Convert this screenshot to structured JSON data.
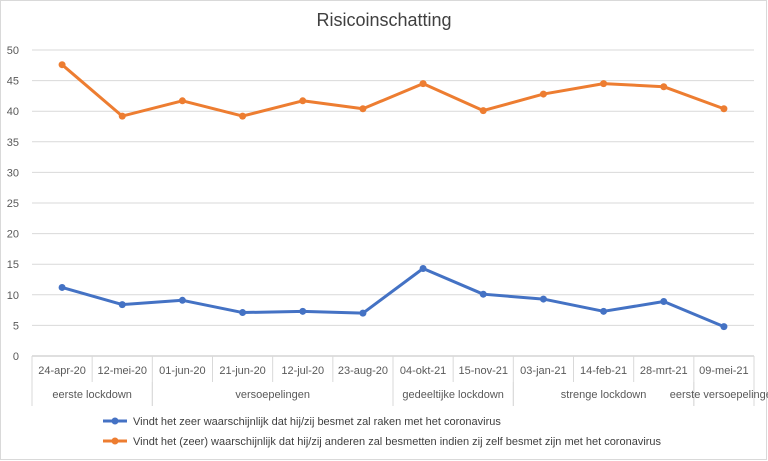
{
  "chart_data": {
    "type": "line",
    "title": "Risicoinschatting",
    "xlabel": "",
    "ylabel": "",
    "ylim": [
      0,
      50
    ],
    "yticks": [
      0,
      5,
      10,
      15,
      20,
      25,
      30,
      35,
      40,
      45,
      50
    ],
    "grid": true,
    "legend_position": "bottom",
    "categories": [
      "24-apr-20",
      "12-mei-20",
      "01-jun-20",
      "21-jun-20",
      "12-jul-20",
      "23-aug-20",
      "04-okt-21",
      "15-nov-21",
      "03-jan-21",
      "14-feb-21",
      "28-mrt-21",
      "09-mei-21"
    ],
    "groups": [
      {
        "label": "eerste lockdown",
        "start": 0,
        "end": 1
      },
      {
        "label": "versoepelingen",
        "start": 2,
        "end": 5
      },
      {
        "label": "gedeeltijke lockdown",
        "start": 6,
        "end": 7
      },
      {
        "label": "strenge lockdown",
        "start": 8,
        "end": 10
      },
      {
        "label": "eerste versoepelingen",
        "start": 11,
        "end": 11
      }
    ],
    "series": [
      {
        "name": "Vindt het zeer waarschijnlijk dat hij/zij besmet zal raken met het coronavirus",
        "color": "#4472c4",
        "values": [
          11.2,
          8.4,
          9.1,
          7.1,
          7.3,
          7.0,
          14.3,
          10.1,
          9.3,
          7.3,
          8.9,
          4.8
        ]
      },
      {
        "name": "Vindt het (zeer) waarschijnlijk dat hij/zij anderen zal besmetten indien zij zelf besmet zijn met het coronavirus",
        "color": "#ed7d31",
        "values": [
          47.6,
          39.2,
          41.7,
          39.2,
          41.7,
          40.4,
          44.5,
          40.1,
          42.8,
          44.5,
          44.0,
          40.4
        ]
      }
    ]
  }
}
